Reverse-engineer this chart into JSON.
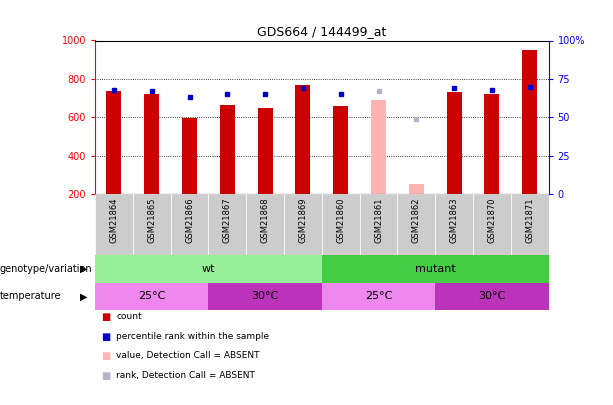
{
  "title": "GDS664 / 144499_at",
  "samples": [
    "GSM21864",
    "GSM21865",
    "GSM21866",
    "GSM21867",
    "GSM21868",
    "GSM21869",
    "GSM21860",
    "GSM21861",
    "GSM21862",
    "GSM21863",
    "GSM21870",
    "GSM21871"
  ],
  "count_values": [
    740,
    720,
    597,
    665,
    651,
    768,
    662,
    690,
    255,
    730,
    720,
    950
  ],
  "rank_values": [
    68,
    67,
    63,
    65,
    65,
    69,
    65,
    67,
    49,
    69,
    68,
    70
  ],
  "is_absent": [
    false,
    false,
    false,
    false,
    false,
    false,
    false,
    true,
    true,
    false,
    false,
    false
  ],
  "ylim_left": [
    200,
    1000
  ],
  "ylim_right": [
    0,
    100
  ],
  "yticks_left": [
    200,
    400,
    600,
    800,
    1000
  ],
  "yticks_right": [
    0,
    25,
    50,
    75,
    100
  ],
  "yticklabels_right": [
    "0",
    "25",
    "50",
    "75",
    "100%"
  ],
  "bar_color_normal": "#cc0000",
  "bar_color_absent": "#ffb3b3",
  "rank_color_normal": "#0000cc",
  "rank_color_absent": "#b3b3cc",
  "bar_width": 0.4,
  "rank_marker_size": 3,
  "plot_bg": "#ffffff",
  "grid_color": "#000000",
  "grid_linestyle": ":",
  "grid_linewidth": 0.6,
  "xtick_bg": "#cccccc",
  "genotype_wt_color": "#99ee99",
  "genotype_mut_color": "#44cc44",
  "temp_25_color": "#ee88ee",
  "temp_30_color": "#bb33bb",
  "temp_text_color": "#000000",
  "genotype_groups": [
    {
      "label": "wt",
      "start": 0,
      "end": 6
    },
    {
      "label": "mutant",
      "start": 6,
      "end": 12
    }
  ],
  "temp_groups": [
    {
      "label": "25°C",
      "start": 0,
      "end": 3,
      "color_key": "temp_25_color"
    },
    {
      "label": "30°C",
      "start": 3,
      "end": 6,
      "color_key": "temp_30_color"
    },
    {
      "label": "25°C",
      "start": 6,
      "end": 9,
      "color_key": "temp_25_color"
    },
    {
      "label": "30°C",
      "start": 9,
      "end": 12,
      "color_key": "temp_30_color"
    }
  ],
  "legend_items": [
    {
      "label": "count",
      "color": "#cc0000"
    },
    {
      "label": "percentile rank within the sample",
      "color": "#0000cc"
    },
    {
      "label": "value, Detection Call = ABSENT",
      "color": "#ffb3b3"
    },
    {
      "label": "rank, Detection Call = ABSENT",
      "color": "#b3b3cc"
    }
  ],
  "left_label_geno": "genotype/variation",
  "left_label_temp": "temperature",
  "arrow_char": "▶",
  "figsize": [
    6.13,
    4.05
  ],
  "dpi": 100
}
